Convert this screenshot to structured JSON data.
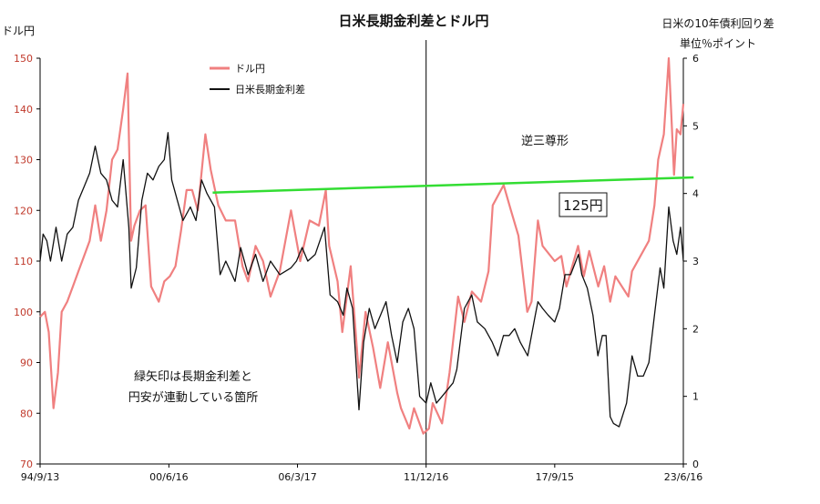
{
  "chart_data": {
    "type": "line",
    "title": "日米長期金利差とドル円",
    "left_axis": {
      "label": "ドル円",
      "ylim": [
        70,
        150
      ],
      "ticks": [
        70,
        80,
        90,
        100,
        110,
        120,
        130,
        140,
        150
      ],
      "color": "#c0392b"
    },
    "right_axis": {
      "label_line1": "日米の10年債利回り差",
      "label_line2": "単位％ポイント",
      "ylim": [
        0,
        6
      ],
      "ticks": [
        0,
        1,
        2,
        3,
        4,
        5,
        6
      ]
    },
    "x_axis": {
      "start": "1994-09-13",
      "end": "2023-06-16",
      "tick_labels": [
        {
          "label": "94/9/13",
          "date": "1994-09-13"
        },
        {
          "label": "00/6/16",
          "date": "2000-06-16"
        },
        {
          "label": "06/3/17",
          "date": "2006-03-17"
        },
        {
          "label": "11/12/16",
          "date": "2011-12-16"
        },
        {
          "label": "17/9/15",
          "date": "2017-09-15"
        },
        {
          "label": "23/6/16",
          "date": "2023-06-16"
        }
      ]
    },
    "series": [
      {
        "name": "ドル円",
        "axis": "left",
        "color": "#f08080",
        "points": [
          [
            "1994-09-13",
            99
          ],
          [
            "1994-12-01",
            100
          ],
          [
            "1995-02-01",
            96
          ],
          [
            "1995-04-19",
            81
          ],
          [
            "1995-07-01",
            88
          ],
          [
            "1995-09-01",
            100
          ],
          [
            "1995-12-01",
            102
          ],
          [
            "1996-03-01",
            105
          ],
          [
            "1996-06-01",
            108
          ],
          [
            "1996-09-01",
            111
          ],
          [
            "1996-12-01",
            114
          ],
          [
            "1997-03-01",
            121
          ],
          [
            "1997-06-01",
            114
          ],
          [
            "1997-09-01",
            120
          ],
          [
            "1997-12-01",
            130
          ],
          [
            "1998-03-01",
            132
          ],
          [
            "1998-06-01",
            140
          ],
          [
            "1998-08-11",
            147
          ],
          [
            "1998-10-08",
            114
          ],
          [
            "1998-12-01",
            117
          ],
          [
            "1999-03-01",
            120
          ],
          [
            "1999-06-01",
            121
          ],
          [
            "1999-09-01",
            105
          ],
          [
            "2000-01-04",
            102
          ],
          [
            "2000-04-01",
            106
          ],
          [
            "2000-07-01",
            107
          ],
          [
            "2000-10-01",
            109
          ],
          [
            "2001-01-01",
            116
          ],
          [
            "2001-04-01",
            124
          ],
          [
            "2001-07-01",
            124
          ],
          [
            "2001-10-01",
            120
          ],
          [
            "2002-02-01",
            135
          ],
          [
            "2002-05-01",
            128
          ],
          [
            "2002-09-01",
            121
          ],
          [
            "2003-01-01",
            118
          ],
          [
            "2003-06-01",
            118
          ],
          [
            "2003-10-01",
            109
          ],
          [
            "2004-01-01",
            106
          ],
          [
            "2004-05-01",
            113
          ],
          [
            "2004-09-01",
            110
          ],
          [
            "2005-01-01",
            103
          ],
          [
            "2005-06-01",
            108
          ],
          [
            "2005-12-01",
            120
          ],
          [
            "2006-05-01",
            110
          ],
          [
            "2006-10-01",
            118
          ],
          [
            "2007-03-01",
            117
          ],
          [
            "2007-06-22",
            124
          ],
          [
            "2007-08-17",
            113
          ],
          [
            "2008-01-01",
            106
          ],
          [
            "2008-03-17",
            96
          ],
          [
            "2008-08-01",
            109
          ],
          [
            "2008-12-17",
            87
          ],
          [
            "2009-04-01",
            100
          ],
          [
            "2009-08-01",
            93
          ],
          [
            "2009-11-27",
            85
          ],
          [
            "2010-04-01",
            94
          ],
          [
            "2010-09-01",
            84
          ],
          [
            "2010-11-01",
            81
          ],
          [
            "2011-03-17",
            77
          ],
          [
            "2011-06-01",
            81
          ],
          [
            "2011-10-31",
            76
          ],
          [
            "2012-02-01",
            77
          ],
          [
            "2012-04-01",
            82
          ],
          [
            "2012-09-01",
            78
          ],
          [
            "2013-01-01",
            88
          ],
          [
            "2013-05-22",
            103
          ],
          [
            "2013-09-01",
            98
          ],
          [
            "2014-01-01",
            104
          ],
          [
            "2014-06-01",
            102
          ],
          [
            "2014-10-01",
            108
          ],
          [
            "2014-12-08",
            121
          ],
          [
            "2015-06-05",
            125
          ],
          [
            "2015-10-01",
            120
          ],
          [
            "2016-02-01",
            115
          ],
          [
            "2016-06-24",
            100
          ],
          [
            "2016-09-01",
            102
          ],
          [
            "2016-12-15",
            118
          ],
          [
            "2017-03-01",
            113
          ],
          [
            "2017-09-15",
            110
          ],
          [
            "2018-01-01",
            111
          ],
          [
            "2018-03-26",
            105
          ],
          [
            "2018-10-01",
            113
          ],
          [
            "2019-01-03",
            107
          ],
          [
            "2019-04-01",
            112
          ],
          [
            "2019-08-26",
            105
          ],
          [
            "2019-12-01",
            109
          ],
          [
            "2020-03-09",
            102
          ],
          [
            "2020-06-01",
            107
          ],
          [
            "2020-12-31",
            103
          ],
          [
            "2021-03-01",
            108
          ],
          [
            "2021-12-01",
            114
          ],
          [
            "2022-03-01",
            121
          ],
          [
            "2022-05-01",
            130
          ],
          [
            "2022-08-01",
            135
          ],
          [
            "2022-10-21",
            150
          ],
          [
            "2023-01-16",
            127
          ],
          [
            "2023-03-01",
            136
          ],
          [
            "2023-05-01",
            135
          ],
          [
            "2023-06-16",
            141
          ]
        ]
      },
      {
        "name": "日米長期金利差",
        "axis": "right",
        "color": "#111111",
        "points": [
          [
            "1994-09-13",
            3.0
          ],
          [
            "1994-11-01",
            3.4
          ],
          [
            "1995-01-01",
            3.3
          ],
          [
            "1995-03-01",
            3.0
          ],
          [
            "1995-06-01",
            3.5
          ],
          [
            "1995-09-01",
            3.0
          ],
          [
            "1995-12-01",
            3.4
          ],
          [
            "1996-03-01",
            3.5
          ],
          [
            "1996-06-01",
            3.9
          ],
          [
            "1996-09-01",
            4.1
          ],
          [
            "1996-12-01",
            4.3
          ],
          [
            "1997-03-01",
            4.7
          ],
          [
            "1997-06-01",
            4.3
          ],
          [
            "1997-09-01",
            4.2
          ],
          [
            "1997-12-01",
            3.9
          ],
          [
            "1998-03-01",
            3.8
          ],
          [
            "1998-06-01",
            4.5
          ],
          [
            "1998-09-01",
            3.5
          ],
          [
            "1998-10-10",
            2.6
          ],
          [
            "1999-01-01",
            2.9
          ],
          [
            "1999-04-01",
            3.9
          ],
          [
            "1999-07-01",
            4.3
          ],
          [
            "1999-10-01",
            4.2
          ],
          [
            "2000-01-04",
            4.4
          ],
          [
            "2000-04-01",
            4.5
          ],
          [
            "2000-06-01",
            4.9
          ],
          [
            "2000-08-01",
            4.2
          ],
          [
            "2000-11-01",
            3.9
          ],
          [
            "2001-02-01",
            3.6
          ],
          [
            "2001-06-01",
            3.8
          ],
          [
            "2001-09-01",
            3.6
          ],
          [
            "2001-12-01",
            4.2
          ],
          [
            "2002-03-01",
            4.0
          ],
          [
            "2002-07-01",
            3.8
          ],
          [
            "2002-10-01",
            2.8
          ],
          [
            "2003-01-01",
            3.0
          ],
          [
            "2003-06-01",
            2.7
          ],
          [
            "2003-09-01",
            3.2
          ],
          [
            "2004-01-01",
            2.8
          ],
          [
            "2004-05-01",
            3.1
          ],
          [
            "2004-09-01",
            2.7
          ],
          [
            "2005-01-01",
            3.0
          ],
          [
            "2005-06-01",
            2.8
          ],
          [
            "2005-12-01",
            2.9
          ],
          [
            "2006-03-01",
            3.0
          ],
          [
            "2006-06-01",
            3.2
          ],
          [
            "2006-09-01",
            3.0
          ],
          [
            "2007-01-01",
            3.1
          ],
          [
            "2007-06-01",
            3.5
          ],
          [
            "2007-09-01",
            2.5
          ],
          [
            "2008-01-01",
            2.4
          ],
          [
            "2008-04-01",
            2.2
          ],
          [
            "2008-06-01",
            2.6
          ],
          [
            "2008-09-01",
            2.3
          ],
          [
            "2008-12-15",
            0.8
          ],
          [
            "2009-03-01",
            1.8
          ],
          [
            "2009-06-01",
            2.3
          ],
          [
            "2009-09-01",
            2.0
          ],
          [
            "2009-12-01",
            2.2
          ],
          [
            "2010-03-01",
            2.4
          ],
          [
            "2010-06-01",
            1.9
          ],
          [
            "2010-09-01",
            1.5
          ],
          [
            "2010-12-01",
            2.1
          ],
          [
            "2011-03-01",
            2.3
          ],
          [
            "2011-06-01",
            2.0
          ],
          [
            "2011-09-01",
            1.0
          ],
          [
            "2011-12-16",
            0.9
          ],
          [
            "2012-03-01",
            1.2
          ],
          [
            "2012-06-01",
            0.9
          ],
          [
            "2012-09-01",
            1.0
          ],
          [
            "2012-12-01",
            1.1
          ],
          [
            "2013-03-01",
            1.2
          ],
          [
            "2013-05-01",
            1.4
          ],
          [
            "2013-09-01",
            2.3
          ],
          [
            "2013-12-31",
            2.5
          ],
          [
            "2014-04-01",
            2.1
          ],
          [
            "2014-08-01",
            2.0
          ],
          [
            "2014-12-01",
            1.8
          ],
          [
            "2015-03-01",
            1.6
          ],
          [
            "2015-06-01",
            1.9
          ],
          [
            "2015-09-01",
            1.9
          ],
          [
            "2015-12-01",
            2.0
          ],
          [
            "2016-03-01",
            1.8
          ],
          [
            "2016-07-01",
            1.6
          ],
          [
            "2016-11-01",
            2.2
          ],
          [
            "2016-12-15",
            2.4
          ],
          [
            "2017-03-01",
            2.3
          ],
          [
            "2017-06-01",
            2.2
          ],
          [
            "2017-09-15",
            2.1
          ],
          [
            "2017-12-01",
            2.3
          ],
          [
            "2018-03-01",
            2.8
          ],
          [
            "2018-06-01",
            2.8
          ],
          [
            "2018-10-08",
            3.1
          ],
          [
            "2018-12-01",
            2.8
          ],
          [
            "2019-03-01",
            2.6
          ],
          [
            "2019-06-01",
            2.2
          ],
          [
            "2019-08-20",
            1.6
          ],
          [
            "2019-11-01",
            1.9
          ],
          [
            "2020-01-01",
            1.9
          ],
          [
            "2020-03-09",
            0.7
          ],
          [
            "2020-05-01",
            0.6
          ],
          [
            "2020-08-01",
            0.55
          ],
          [
            "2020-12-01",
            0.9
          ],
          [
            "2021-03-01",
            1.6
          ],
          [
            "2021-06-01",
            1.3
          ],
          [
            "2021-09-01",
            1.3
          ],
          [
            "2021-12-01",
            1.5
          ],
          [
            "2022-03-01",
            2.2
          ],
          [
            "2022-06-01",
            2.9
          ],
          [
            "2022-08-01",
            2.6
          ],
          [
            "2022-10-21",
            3.8
          ],
          [
            "2023-01-01",
            3.3
          ],
          [
            "2023-03-01",
            3.1
          ],
          [
            "2023-05-01",
            3.5
          ],
          [
            "2023-06-16",
            3.0
          ]
        ]
      }
    ],
    "trendline": {
      "color": "#33dd33",
      "from": [
        "2002-06-01",
        123.5
      ],
      "to": [
        "2023-12-01",
        126.5
      ]
    },
    "vertical_marker": {
      "date": "2011-12-16"
    },
    "annotations": {
      "pattern": "逆三尊形",
      "level_label": "125円",
      "note_line1": "緑矢印は長期金利差と",
      "note_line2": "円安が連動している箇所"
    },
    "legend": {
      "placement": "top-left-inside"
    },
    "grid": false
  }
}
